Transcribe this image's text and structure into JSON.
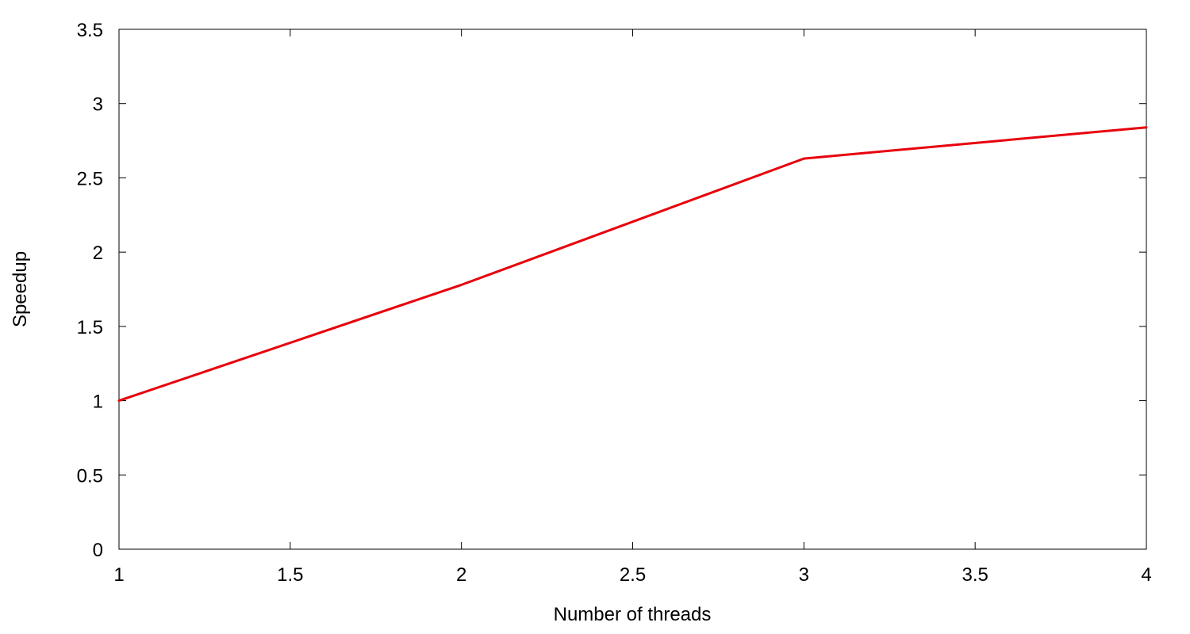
{
  "chart_data": {
    "type": "line",
    "title": "",
    "xlabel": "Number of threads",
    "ylabel": "Speedup",
    "xlim": [
      1,
      4
    ],
    "ylim": [
      0,
      3.5
    ],
    "xticks": [
      1,
      1.5,
      2,
      2.5,
      3,
      3.5,
      4
    ],
    "xtick_labels": [
      "1",
      "1.5",
      "2",
      "2.5",
      "3",
      "3.5",
      "4"
    ],
    "yticks": [
      0,
      0.5,
      1,
      1.5,
      2,
      2.5,
      3,
      3.5
    ],
    "ytick_labels": [
      "0",
      "0.5",
      "1",
      "1.5",
      "2",
      "2.5",
      "3",
      "3.5"
    ],
    "grid": false,
    "legend": "none",
    "series": [
      {
        "color": "#e8000b",
        "x": [
          1,
          2,
          3,
          4
        ],
        "y": [
          1.0,
          1.78,
          2.63,
          2.84
        ]
      }
    ]
  }
}
